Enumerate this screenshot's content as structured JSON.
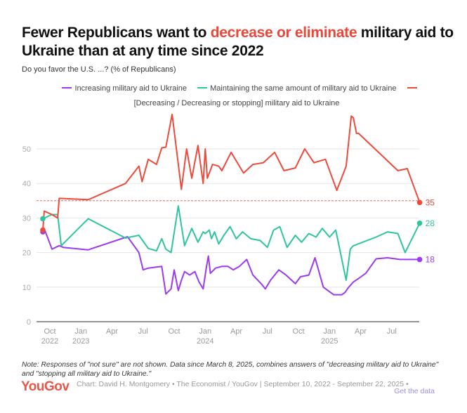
{
  "header": {
    "title_pre": "Fewer Republicans want to ",
    "title_highlight": "decrease or eliminate",
    "title_post": " military aid to Ukraine than at any time since 2022",
    "subtitle": "Do you favor the U.S. ...? (% of Republicans)"
  },
  "legend": [
    {
      "label": "Increasing military aid to Ukraine",
      "color": "#9b3af0"
    },
    {
      "label": "Maintaining the same amount of military aid to Ukraine",
      "color": "#2ec4a0"
    },
    {
      "label": "[Decreasing / Decreasing or stopping] military aid to Ukraine",
      "color": "#ee4a3c"
    }
  ],
  "footer": {
    "note": "Note: Responses of \"not sure\" are not shown. Data since March 8, 2025, combines answers of \"decreasing military aid to Ukraine\" and \"stopping all military aid to Ukraine.\"",
    "logo": "YouGov",
    "credit": "Chart: David H. Montgomery • The Economist / YouGov | September 10, 2022 - September 22, 2025 •",
    "get_data": "Get the data"
  },
  "chart_data": {
    "type": "line",
    "title": "Fewer Republicans want to decrease or eliminate military aid to Ukraine than at any time since 2022",
    "subtitle": "Do you favor the U.S. ...? (% of Republicans)",
    "xlabel": "",
    "ylabel": "",
    "x_unit": "months since Oct 1, 2022",
    "xlim": [
      -0.7,
      35.7
    ],
    "ylim": [
      0,
      60
    ],
    "yticks": [
      0,
      10,
      20,
      30,
      40,
      50
    ],
    "xticks": [
      {
        "at": 0,
        "label": [
          "Oct",
          "2022"
        ]
      },
      {
        "at": 3,
        "label": [
          "Jan",
          "2023"
        ]
      },
      {
        "at": 6,
        "label": [
          "Apr"
        ]
      },
      {
        "at": 9,
        "label": [
          "Jul"
        ]
      },
      {
        "at": 12,
        "label": [
          "Oct"
        ]
      },
      {
        "at": 15,
        "label": [
          "Jan",
          "2024"
        ]
      },
      {
        "at": 18,
        "label": [
          "Apr"
        ]
      },
      {
        "at": 21,
        "label": [
          "Jul"
        ]
      },
      {
        "at": 24,
        "label": [
          "Oct"
        ]
      },
      {
        "at": 27,
        "label": [
          "Jan",
          "2025"
        ]
      },
      {
        "at": 30,
        "label": [
          "Apr"
        ]
      },
      {
        "at": 33,
        "label": [
          "Jul"
        ]
      }
    ],
    "grid": true,
    "legend_position": "top",
    "reference_line": {
      "value": 35,
      "series": "decreasing"
    },
    "series": [
      {
        "name": "Increasing military aid to Ukraine",
        "key": "increasing",
        "color": "#9b3af0",
        "end_label": "18",
        "x": [
          -0.68,
          -0.55,
          0.2,
          0.9,
          1.3,
          3.7,
          7.5,
          8.6,
          9.0,
          9.5,
          10.8,
          11.2,
          11.7,
          12.0,
          12.4,
          12.7,
          13.0,
          13.5,
          14.0,
          14.4,
          14.8,
          15.1,
          15.3,
          15.5,
          16.0,
          16.6,
          17.2,
          17.7,
          18.3,
          19.0,
          19.6,
          20.4,
          20.8,
          21.3,
          22.1,
          22.8,
          23.7,
          24.2,
          25.0,
          25.6,
          26.4,
          27.4,
          28.2,
          28.5,
          28.8,
          29.3,
          29.8,
          30.5,
          31.5,
          32.6,
          33.8,
          35.7
        ],
        "y": [
          26,
          27,
          21,
          22,
          21.5,
          20.8,
          24.6,
          20,
          15,
          15.5,
          16,
          8,
          9.5,
          15,
          9,
          12,
          14.5,
          13.5,
          14.5,
          11.5,
          9.5,
          15.5,
          19,
          14,
          15.5,
          16,
          16,
          15,
          16,
          18,
          13.5,
          11,
          9.5,
          12,
          15,
          13.5,
          11,
          13,
          13.5,
          18.5,
          10,
          7.8,
          7.8,
          8.5,
          9.8,
          11.5,
          12.5,
          14,
          18.2,
          18.5,
          18,
          18
        ]
      },
      {
        "name": "Maintaining the same amount of military aid to Ukraine",
        "key": "maintaining",
        "color": "#2ec4a0",
        "end_label": "28",
        "x": [
          -0.68,
          0.2,
          0.75,
          1.1,
          3.7,
          7.3,
          8.6,
          9.5,
          10.3,
          10.8,
          11.2,
          11.7,
          12.4,
          13.0,
          13.7,
          14.3,
          14.8,
          15.0,
          15.4,
          15.6,
          15.9,
          16.3,
          16.8,
          17.4,
          18.0,
          18.6,
          19.4,
          20.3,
          21.0,
          21.6,
          22.2,
          22.9,
          23.7,
          24.3,
          25.0,
          25.7,
          26.3,
          27.0,
          27.6,
          28.6,
          29.0,
          29.3,
          29.5,
          31.5,
          32.6,
          33.6,
          34.3,
          35.7
        ],
        "y": [
          29.8,
          31,
          31,
          22,
          29.8,
          24.2,
          25,
          21.2,
          20.5,
          24,
          21,
          20,
          33.5,
          22,
          27,
          23,
          26,
          25.5,
          26.5,
          24,
          26,
          22.5,
          25,
          27.5,
          24,
          26,
          24,
          23.5,
          21.5,
          26.5,
          27.5,
          21.5,
          25,
          23,
          25.5,
          24.5,
          27,
          24.5,
          26.5,
          12,
          21,
          22,
          22.2,
          24.5,
          26,
          25.5,
          20,
          28.5
        ]
      },
      {
        "name": "[Decreasing / Decreasing or stopping] military aid to Ukraine",
        "key": "decreasing",
        "color": "#ee4a3c",
        "end_label": "35",
        "x": [
          -0.68,
          -0.54,
          0.2,
          0.75,
          0.9,
          3.7,
          7.3,
          8.6,
          8.9,
          9.5,
          10.3,
          10.8,
          11.2,
          11.8,
          12.7,
          13.2,
          13.7,
          14.3,
          14.8,
          15.0,
          15.2,
          15.7,
          16.3,
          16.6,
          17.5,
          18.7,
          19.6,
          20.6,
          21.7,
          22.6,
          23.7,
          24.6,
          25.5,
          26.6,
          27.7,
          28.6,
          29.1,
          29.3,
          29.6,
          29.8,
          33.6,
          34.5,
          35.7
        ],
        "y": [
          26.5,
          32,
          31,
          30,
          35.7,
          35.3,
          40,
          45,
          40.5,
          47,
          45.5,
          50.3,
          50.5,
          60,
          38.3,
          50,
          41.5,
          51,
          40,
          50,
          41.5,
          45.5,
          45,
          43.7,
          49,
          43,
          45.5,
          46,
          49,
          43.7,
          44.5,
          50,
          46,
          47,
          38,
          45,
          59.5,
          59,
          54.5,
          54.5,
          43.7,
          44.3,
          34.5
        ]
      }
    ]
  }
}
